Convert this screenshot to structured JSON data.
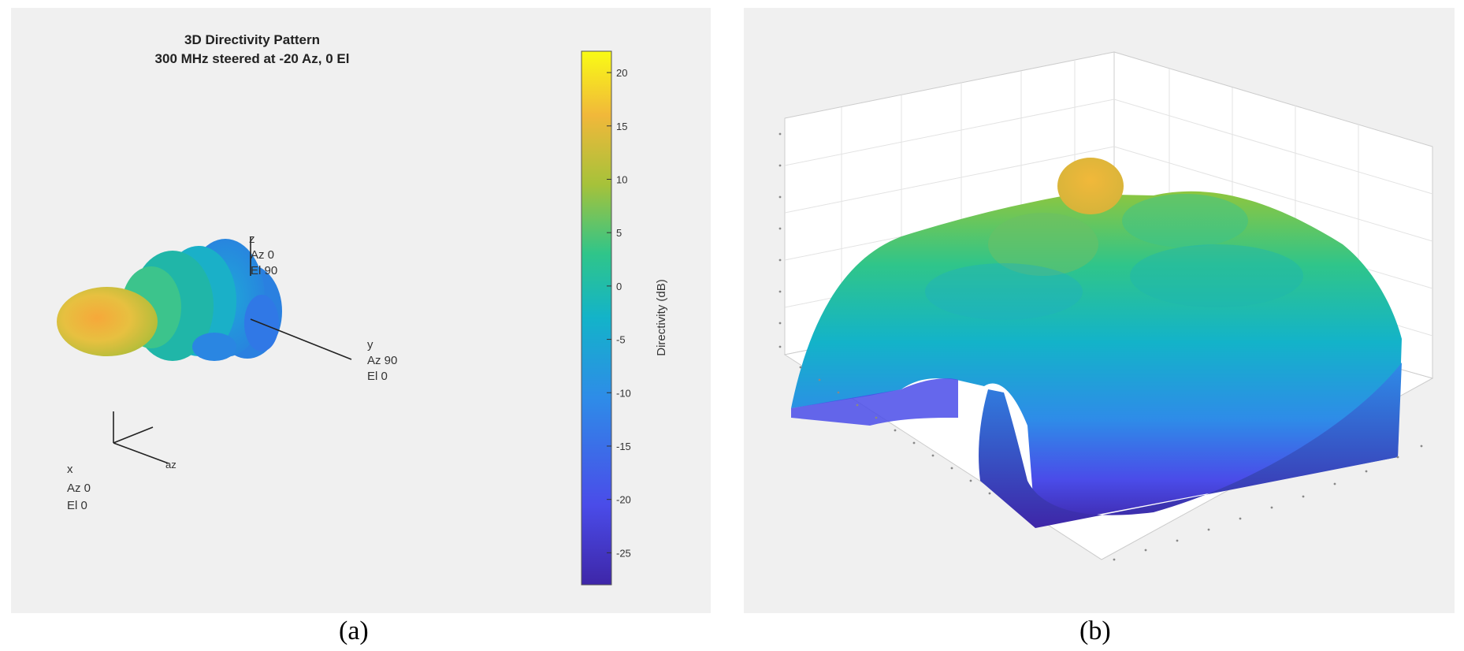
{
  "panels": {
    "a": {
      "caption": "(a)",
      "title_line1": "3D Directivity Pattern",
      "title_line2": "300 MHz steered at -20 Az, 0 El",
      "axis_labels": {
        "z_name": "z",
        "z_az": "Az 0",
        "z_el": "El 90",
        "y_name": "y",
        "y_az": "Az 90",
        "y_el": "El 0",
        "x_name": "x",
        "x_az": "Az 0",
        "x_el": "El 0",
        "az_name": "az"
      }
    },
    "b": {
      "caption": "(b)"
    }
  },
  "chart_data": [
    {
      "type": "surface",
      "title": "3D Directivity Pattern",
      "subtitle": "300 MHz steered at -20 Az, 0 El",
      "colorbar": {
        "label": "Directivity (dB)",
        "range": [
          -28,
          22
        ],
        "ticks": [
          20,
          15,
          10,
          5,
          0,
          -5,
          -10,
          -15,
          -20,
          -25
        ],
        "colormap": [
          "#3e26a8",
          "#4a4ce9",
          "#2e8ce8",
          "#13b3c9",
          "#2fc58a",
          "#a6c23a",
          "#f1b83a",
          "#f9fb15"
        ]
      },
      "steering": {
        "frequency_mhz": 300,
        "azimuth_deg": -20,
        "elevation_deg": 0
      }
    },
    {
      "type": "surface",
      "colormap": [
        "#3e26a8",
        "#4a4ce9",
        "#2e8ce8",
        "#13b3c9",
        "#2fc58a",
        "#a6c23a",
        "#f1b83a"
      ]
    }
  ]
}
